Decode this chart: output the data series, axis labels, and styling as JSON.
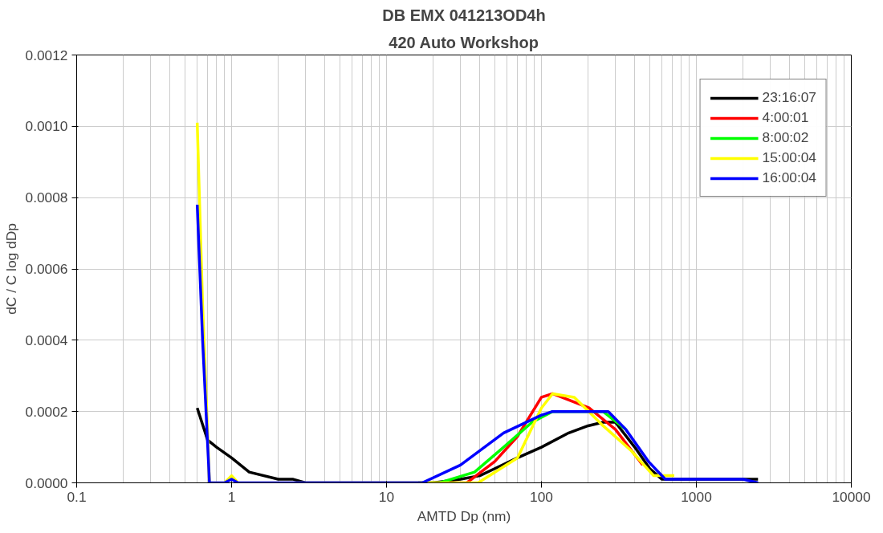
{
  "chart_data": {
    "type": "line",
    "title": "DB EMX 041213OD4h",
    "subtitle": "420 Auto Workshop",
    "xlabel": "AMTD Dp (nm)",
    "ylabel": "dC / C log dDp",
    "log": "x",
    "grid": true,
    "legend": "top right",
    "line_style": "solid",
    "marker": "none",
    "xlim": [
      0.1,
      10000
    ],
    "xticks": [
      0.1,
      1,
      10,
      100,
      1000,
      10000
    ],
    "ylim": [
      0,
      0.0012
    ],
    "yticks": [
      {
        "value": 0,
        "label": "0.0000"
      },
      {
        "value": 0.0002,
        "label": "0.0002"
      },
      {
        "value": 0.0004,
        "label": "0.0004"
      },
      {
        "value": 0.0006,
        "label": "0.0006"
      },
      {
        "value": 0.0008,
        "label": "0.0008"
      },
      {
        "value": 0.001,
        "label": "0.0010"
      },
      {
        "value": 0.0012,
        "label": "0.0012"
      }
    ],
    "series": [
      {
        "name": "23:16:07",
        "color": "#000000",
        "x": [
          0.6,
          0.7,
          0.8,
          1,
          1.3,
          2,
          2.5,
          3,
          16,
          20,
          30,
          40,
          50,
          70,
          100,
          150,
          200,
          250,
          300,
          400,
          500,
          600,
          700,
          1000,
          2500
        ],
        "values": [
          0.00021,
          0.00012,
          0.0001,
          7e-05,
          3e-05,
          1e-05,
          1e-05,
          0,
          0,
          0,
          1e-05,
          2e-05,
          4e-05,
          7e-05,
          0.0001,
          0.00014,
          0.00016,
          0.00017,
          0.00017,
          0.0001,
          4e-05,
          1e-05,
          1e-05,
          1e-05,
          1e-05
        ]
      },
      {
        "name": "4:00:01",
        "color": "#ff0000",
        "x": [
          16,
          33,
          50,
          70,
          100,
          118,
          203,
          300,
          450
        ],
        "values": [
          0,
          0,
          6e-05,
          0.00013,
          0.00024,
          0.00025,
          0.00021,
          0.00015,
          5e-05
        ]
      },
      {
        "name": "8:00:02",
        "color": "#00ff00",
        "x": [
          16,
          22,
          37,
          57,
          87,
          118,
          250,
          350
        ],
        "values": [
          0,
          0,
          3e-05,
          0.0001,
          0.00017,
          0.0002,
          0.0002,
          0.00015
        ]
      },
      {
        "name": "15:00:04",
        "color": "#ffff00",
        "x": [
          0.6,
          0.65,
          0.72,
          0.9,
          1,
          1.1,
          16,
          39,
          70,
          100,
          118,
          163,
          250,
          380,
          530,
          720
        ],
        "values": [
          0.00101,
          0.0005,
          0,
          0,
          2e-05,
          0,
          0,
          0,
          7e-05,
          0.00021,
          0.00025,
          0.00024,
          0.00016,
          9e-05,
          2e-05,
          2e-05
        ]
      },
      {
        "name": "16:00:04",
        "color": "#0000ff",
        "x": [
          0.6,
          0.65,
          0.72,
          0.9,
          1,
          1.1,
          16,
          17,
          30,
          57,
          100,
          118,
          270,
          350,
          490,
          630,
          1000,
          2000,
          2500
        ],
        "values": [
          0.00078,
          0.0004,
          0,
          0,
          1e-05,
          0,
          0,
          0,
          5e-05,
          0.00014,
          0.00019,
          0.0002,
          0.0002,
          0.00015,
          6e-05,
          1e-05,
          1e-05,
          1e-05,
          0
        ]
      }
    ]
  }
}
